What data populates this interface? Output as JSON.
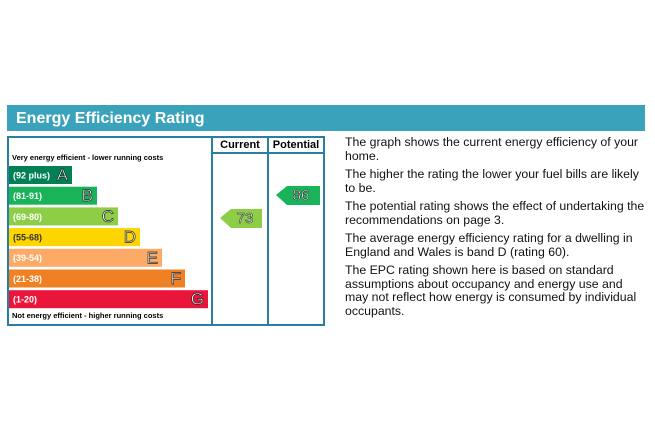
{
  "header": {
    "title": "Energy Efficiency Rating"
  },
  "table": {
    "column_headers": [
      "Current",
      "Potential"
    ],
    "top_note": "Very energy efficient - lower running costs",
    "bottom_note": "Not energy efficient - higher running costs",
    "bands": [
      {
        "range": "(92 plus)",
        "letter": "A",
        "color": "#008054"
      },
      {
        "range": "(81-91)",
        "letter": "B",
        "color": "#19b459"
      },
      {
        "range": "(69-80)",
        "letter": "C",
        "color": "#8dce46"
      },
      {
        "range": "(55-68)",
        "letter": "D",
        "color": "#ffd500"
      },
      {
        "range": "(39-54)",
        "letter": "E",
        "color": "#fcaa65"
      },
      {
        "range": "(21-38)",
        "letter": "F",
        "color": "#ef8023"
      },
      {
        "range": "(1-20)",
        "letter": "G",
        "color": "#e9153b"
      }
    ],
    "current": 73,
    "potential": 86
  },
  "description": [
    "The graph shows the current energy efficiency of your home.",
    "The higher the rating the lower your fuel bills are likely to be.",
    "The potential rating shows the effect of undertaking the recommendations on page 3.",
    "The average energy efficiency rating for a dwelling in England and Wales is band D (rating 60).",
    "The EPC rating shown here is based on standard assumptions about occupancy and energy use and may not reflect how energy is consumed by individual occupants."
  ]
}
